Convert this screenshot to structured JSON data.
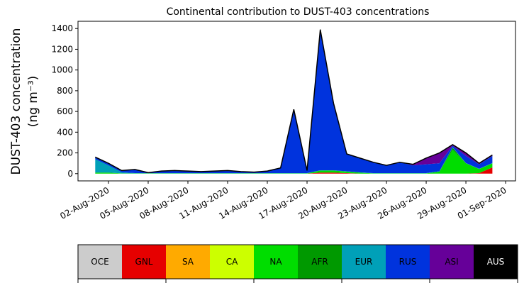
{
  "chart_data": {
    "type": "stacked_area",
    "title": "Continental contribution to DUST-403 concentrations",
    "ylabel": [
      "DUST-403 concentration",
      "(ng m⁻³)"
    ],
    "categories": [
      "01-Aug-2020",
      "02-Aug-2020",
      "03-Aug-2020",
      "04-Aug-2020",
      "05-Aug-2020",
      "06-Aug-2020",
      "07-Aug-2020",
      "08-Aug-2020",
      "09-Aug-2020",
      "10-Aug-2020",
      "11-Aug-2020",
      "12-Aug-2020",
      "13-Aug-2020",
      "14-Aug-2020",
      "15-Aug-2020",
      "16-Aug-2020",
      "17-Aug-2020",
      "18-Aug-2020",
      "19-Aug-2020",
      "20-Aug-2020",
      "21-Aug-2020",
      "22-Aug-2020",
      "23-Aug-2020",
      "24-Aug-2020",
      "25-Aug-2020",
      "26-Aug-2020",
      "27-Aug-2020",
      "28-Aug-2020",
      "29-Aug-2020",
      "30-Aug-2020",
      "31-Aug-2020",
      "01-Sep-2020"
    ],
    "xticks": [
      "02-Aug-2020",
      "05-Aug-2020",
      "08-Aug-2020",
      "11-Aug-2020",
      "14-Aug-2020",
      "17-Aug-2020",
      "20-Aug-2020",
      "23-Aug-2020",
      "26-Aug-2020",
      "29-Aug-2020",
      "01-Sep-2020"
    ],
    "ylim": [
      -70,
      1470
    ],
    "yticks": [
      0,
      200,
      400,
      600,
      800,
      1000,
      1200,
      1400
    ],
    "series": [
      {
        "name": "OCE",
        "color": "#cccccc",
        "values": [
          0,
          0,
          0,
          0,
          0,
          0,
          0,
          0,
          0,
          0,
          0,
          0,
          0,
          0,
          0,
          0,
          0,
          0,
          0,
          0,
          0,
          0,
          0,
          0,
          0,
          0,
          0,
          0,
          0,
          0,
          0,
          null
        ]
      },
      {
        "name": "GNL",
        "color": "#e60000",
        "values": [
          0,
          0,
          0,
          0,
          0,
          0,
          0,
          0,
          0,
          0,
          0,
          0,
          0,
          0,
          0,
          0,
          0,
          10,
          10,
          5,
          0,
          0,
          0,
          0,
          0,
          0,
          0,
          0,
          0,
          5,
          60,
          null
        ]
      },
      {
        "name": "SA",
        "color": "#ffaa00",
        "values": [
          0,
          0,
          0,
          0,
          0,
          0,
          0,
          0,
          0,
          0,
          0,
          0,
          0,
          0,
          0,
          0,
          0,
          0,
          0,
          0,
          0,
          0,
          0,
          0,
          0,
          0,
          0,
          0,
          0,
          0,
          0,
          null
        ]
      },
      {
        "name": "CA",
        "color": "#ccff00",
        "values": [
          0,
          0,
          0,
          0,
          0,
          0,
          0,
          0,
          0,
          0,
          0,
          0,
          0,
          0,
          0,
          0,
          0,
          0,
          0,
          0,
          0,
          0,
          0,
          0,
          0,
          0,
          0,
          0,
          0,
          0,
          0,
          null
        ]
      },
      {
        "name": "NA",
        "color": "#00dd00",
        "values": [
          10,
          10,
          3,
          3,
          3,
          3,
          3,
          3,
          3,
          3,
          3,
          3,
          3,
          3,
          3,
          3,
          3,
          20,
          20,
          15,
          10,
          3,
          3,
          3,
          3,
          3,
          20,
          230,
          100,
          40,
          40,
          null
        ]
      },
      {
        "name": "AFR",
        "color": "#009900",
        "values": [
          0,
          0,
          0,
          0,
          0,
          0,
          0,
          0,
          0,
          0,
          0,
          0,
          0,
          0,
          0,
          0,
          0,
          0,
          0,
          0,
          0,
          0,
          0,
          0,
          0,
          0,
          0,
          20,
          0,
          0,
          0,
          null
        ]
      },
      {
        "name": "EUR",
        "color": "#00a0b8",
        "values": [
          130,
          70,
          10,
          2,
          2,
          2,
          2,
          2,
          2,
          2,
          2,
          2,
          2,
          2,
          2,
          2,
          2,
          2,
          2,
          2,
          2,
          2,
          2,
          2,
          2,
          2,
          2,
          5,
          2,
          2,
          2,
          null
        ]
      },
      {
        "name": "RUS",
        "color": "#0033dd",
        "values": [
          20,
          20,
          17,
          35,
          5,
          20,
          25,
          20,
          15,
          20,
          25,
          15,
          10,
          20,
          50,
          615,
          25,
          1358,
          648,
          168,
          138,
          105,
          75,
          105,
          75,
          85,
          78,
          15,
          68,
          43,
          68,
          null
        ]
      },
      {
        "name": "ASI",
        "color": "#660099",
        "values": [
          0,
          0,
          0,
          0,
          0,
          0,
          0,
          0,
          0,
          0,
          0,
          0,
          0,
          0,
          0,
          0,
          0,
          0,
          0,
          0,
          0,
          0,
          0,
          0,
          10,
          60,
          100,
          10,
          30,
          10,
          10,
          null
        ]
      },
      {
        "name": "AUS",
        "color": "#000000",
        "values": [
          0,
          0,
          0,
          0,
          0,
          0,
          0,
          0,
          0,
          0,
          0,
          0,
          0,
          0,
          0,
          0,
          0,
          0,
          0,
          0,
          0,
          0,
          0,
          0,
          0,
          0,
          0,
          0,
          0,
          0,
          0,
          null
        ]
      }
    ]
  }
}
